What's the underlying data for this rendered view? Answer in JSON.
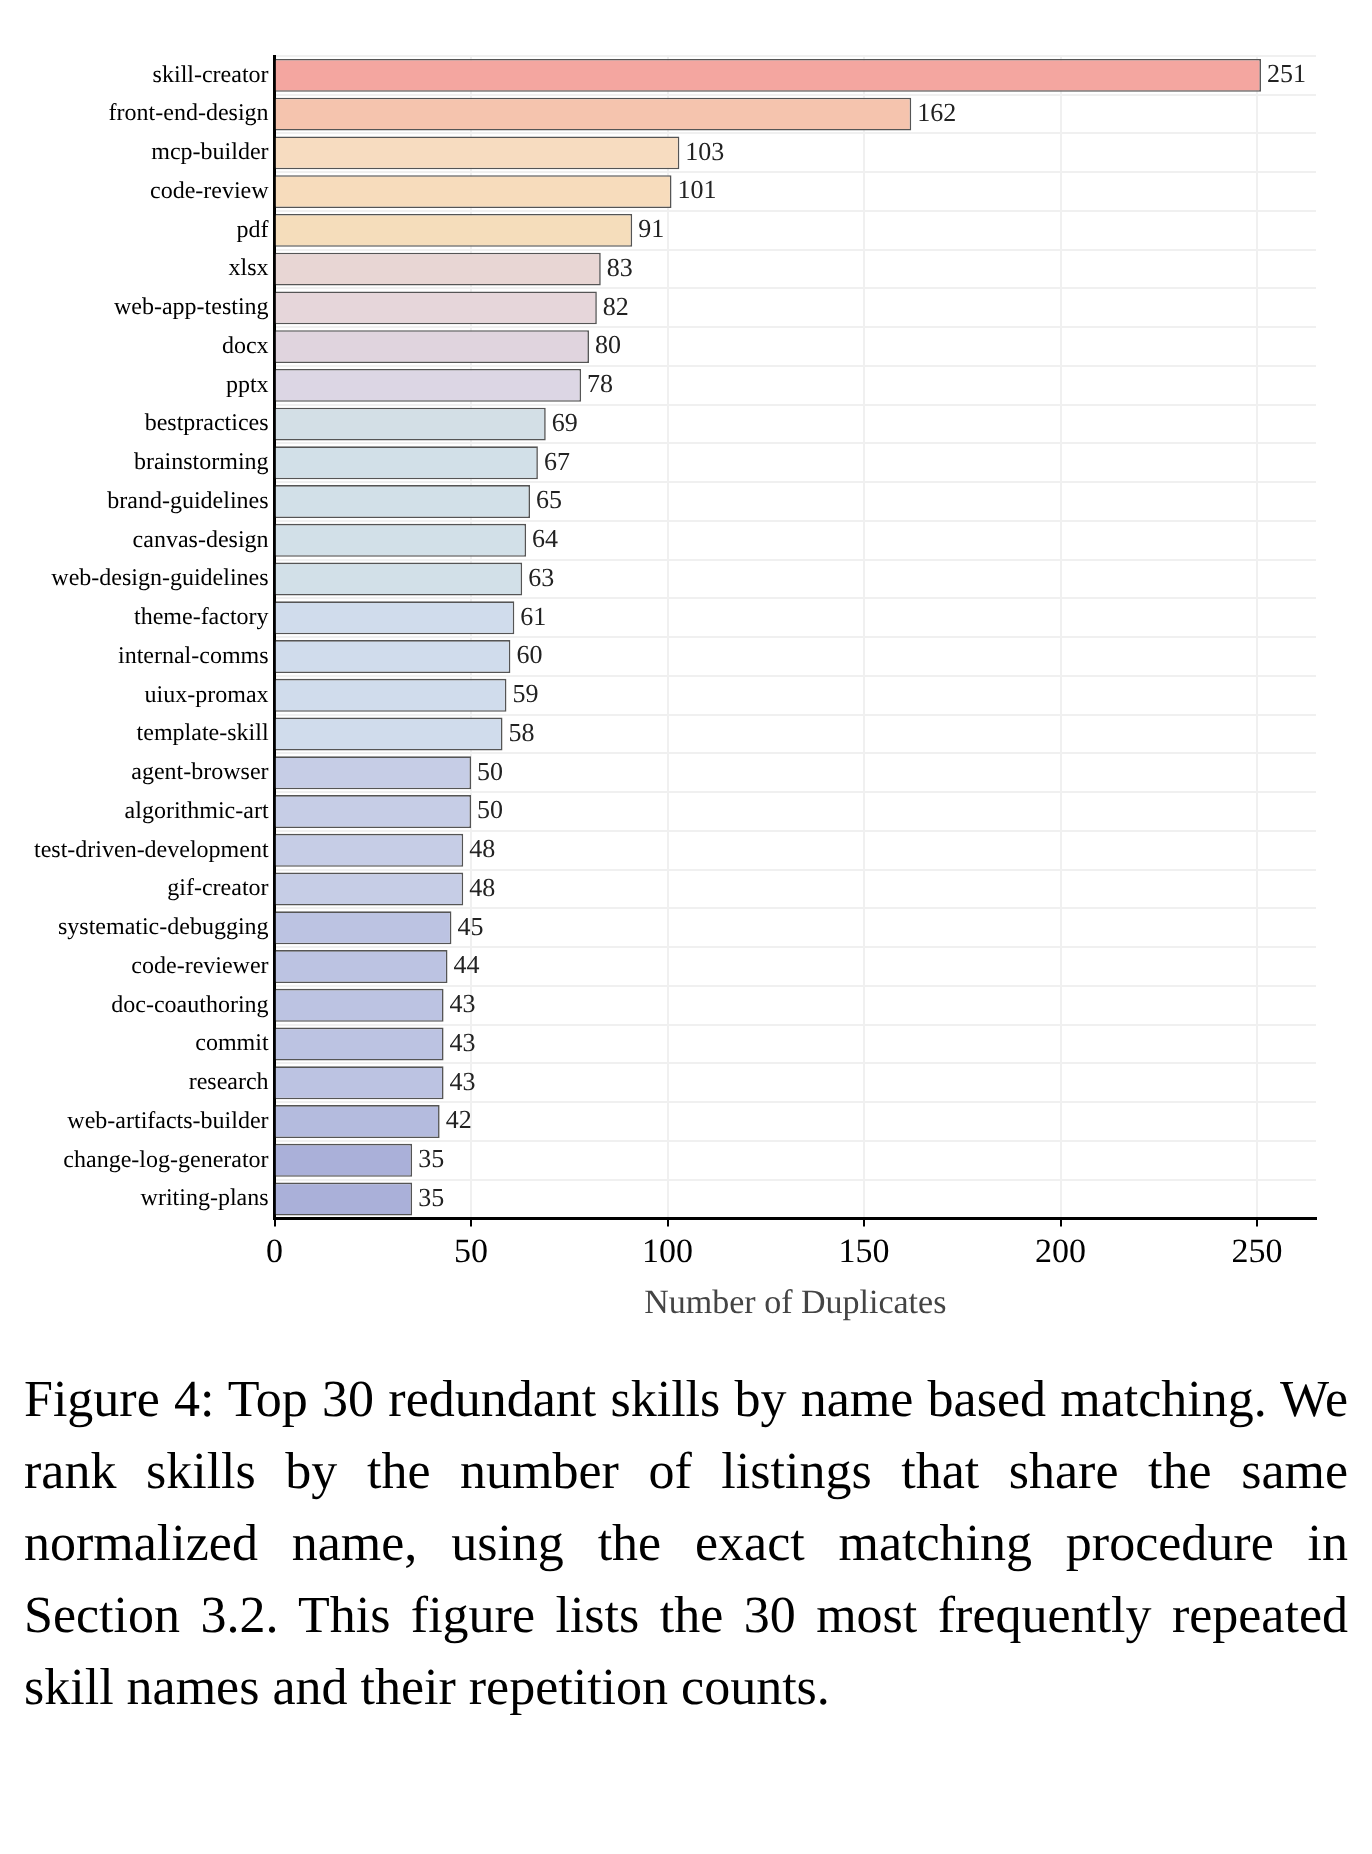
{
  "chart_data": {
    "type": "bar",
    "orientation": "horizontal",
    "xlabel": "Number of Duplicates",
    "categories": [
      "skill-creator",
      "front-end-design",
      "mcp-builder",
      "code-review",
      "pdf",
      "xlsx",
      "web-app-testing",
      "docx",
      "pptx",
      "bestpractices",
      "brainstorming",
      "brand-guidelines",
      "canvas-design",
      "web-design-guidelines",
      "theme-factory",
      "internal-comms",
      "uiux-promax",
      "template-skill",
      "agent-browser",
      "algorithmic-art",
      "test-driven-development",
      "gif-creator",
      "systematic-debugging",
      "code-reviewer",
      "doc-coauthoring",
      "commit",
      "research",
      "web-artifacts-builder",
      "change-log-generator",
      "writing-plans"
    ],
    "values": [
      251,
      162,
      103,
      101,
      91,
      83,
      82,
      80,
      78,
      69,
      67,
      65,
      64,
      63,
      61,
      60,
      59,
      58,
      50,
      50,
      48,
      48,
      45,
      44,
      43,
      43,
      43,
      42,
      35,
      35
    ],
    "colors": [
      "#f4a6a0",
      "#f5c4ae",
      "#f7dcc0",
      "#f7dcbc",
      "#f5ddbb",
      "#e8d6d4",
      "#e6d6da",
      "#e0d4de",
      "#dcd6e4",
      "#d3dfe6",
      "#d2e0e8",
      "#d2e0e8",
      "#d2e0e8",
      "#d2e0e8",
      "#d0dcec",
      "#d0dcec",
      "#d0dcec",
      "#d0dcec",
      "#c6cde6",
      "#c6cde6",
      "#c6cde6",
      "#c6cde6",
      "#bcc3e2",
      "#bcc3e2",
      "#bcc3e2",
      "#bcc3e2",
      "#bcc3e2",
      "#b4bbde",
      "#aab0d9",
      "#aab0d9"
    ],
    "xlim": [
      0,
      265
    ],
    "xticks": [
      0,
      50,
      100,
      150,
      200,
      250
    ],
    "grid": true,
    "data_labels": true,
    "annotations": [
      "Figure 4: Top 30 redundant skills by name based matching. We rank skills by the number of listings that share the same normalized name, using the exact matching procedure in Section 3.2. This figure lists the 30 most frequently repeated skill names and their repetition counts."
    ]
  }
}
